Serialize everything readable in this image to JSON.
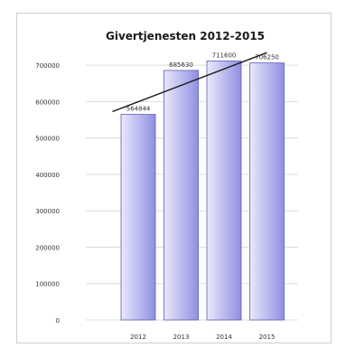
{
  "chart_data": {
    "type": "bar",
    "title": "Givertjenesten 2012-2015",
    "categories": [
      "2012",
      "2013",
      "2014",
      "2015"
    ],
    "values": [
      564844,
      685630,
      711600,
      706250
    ],
    "value_labels": [
      "564844",
      "685630",
      "711600",
      "706250"
    ],
    "ylim": [
      0,
      750000
    ],
    "y_ticks": [
      0,
      100000,
      200000,
      300000,
      400000,
      500000,
      600000,
      700000
    ],
    "y_tick_labels": [
      "0",
      "100000",
      "200000",
      "300000",
      "400000",
      "500000",
      "600000",
      "700000"
    ],
    "grid": true,
    "legend": "none",
    "trendline": {
      "type": "linear"
    },
    "colors": {
      "bar_light": "#e9e9fb",
      "bar_dark": "#8f8fe3",
      "bar_stroke": "#5d5db2",
      "grid": "#dcdcdc",
      "trend": "#1a1a1a",
      "text": "#333333"
    }
  }
}
